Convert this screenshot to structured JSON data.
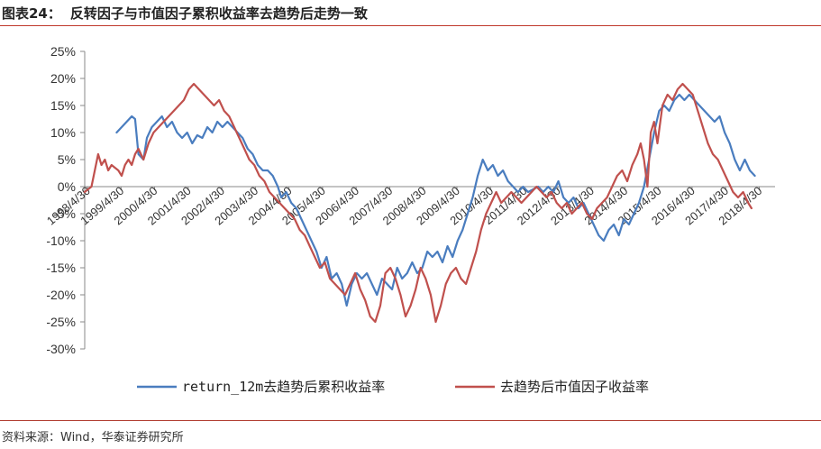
{
  "header": {
    "figure_number": "图表24：",
    "title": "反转因子与市值因子累积收益率去趋势后走势一致"
  },
  "source": "资料来源：Wind，华泰证券研究所",
  "colors": {
    "series_a": "#4a7dbf",
    "series_b": "#c0504d",
    "axis": "#888888",
    "rule": "#c0392b"
  },
  "chart_data": {
    "type": "line",
    "ylim": [
      -0.3,
      0.25
    ],
    "y_tick_labels": [
      "25%",
      "20%",
      "15%",
      "10%",
      "5%",
      "0%",
      "-5%",
      "-10%",
      "-15%",
      "-20%",
      "-25%",
      "-30%"
    ],
    "y_tick_values": [
      0.25,
      0.2,
      0.15,
      0.1,
      0.05,
      0.0,
      -0.05,
      -0.1,
      -0.15,
      -0.2,
      -0.25,
      -0.3
    ],
    "xlim": [
      1998.25,
      2018.8
    ],
    "x_tick_labels": [
      "1998/4/30",
      "1999/4/30",
      "2000/4/30",
      "2001/4/30",
      "2002/4/30",
      "2003/4/30",
      "2004/4/30",
      "2005/4/30",
      "2006/4/30",
      "2007/4/30",
      "2008/4/30",
      "2009/4/30",
      "2010/4/30",
      "2011/4/30",
      "2012/4/30",
      "2013/4/30",
      "2014/4/30",
      "2015/4/30",
      "2016/4/30",
      "2017/4/30",
      "2018/4/30"
    ],
    "x_tick_values": [
      1998.33,
      1999.33,
      2000.33,
      2001.33,
      2002.33,
      2003.33,
      2004.33,
      2005.33,
      2006.33,
      2007.33,
      2008.33,
      2009.33,
      2010.33,
      2011.33,
      2012.33,
      2013.33,
      2014.33,
      2015.33,
      2016.33,
      2017.33,
      2018.33
    ],
    "legend_position": "bottom",
    "series": [
      {
        "name": "return_12m去趋势后累积收益率",
        "color": "#4a7dbf",
        "points": [
          [
            1999.2,
            0.1
          ],
          [
            1999.35,
            0.11
          ],
          [
            1999.5,
            0.12
          ],
          [
            1999.65,
            0.13
          ],
          [
            1999.75,
            0.125
          ],
          [
            1999.85,
            0.06
          ],
          [
            2000.0,
            0.05
          ],
          [
            2000.1,
            0.09
          ],
          [
            2000.25,
            0.11
          ],
          [
            2000.4,
            0.12
          ],
          [
            2000.55,
            0.13
          ],
          [
            2000.7,
            0.11
          ],
          [
            2000.85,
            0.12
          ],
          [
            2001.0,
            0.1
          ],
          [
            2001.15,
            0.09
          ],
          [
            2001.3,
            0.1
          ],
          [
            2001.45,
            0.08
          ],
          [
            2001.6,
            0.095
          ],
          [
            2001.75,
            0.09
          ],
          [
            2001.9,
            0.11
          ],
          [
            2002.05,
            0.1
          ],
          [
            2002.2,
            0.12
          ],
          [
            2002.35,
            0.11
          ],
          [
            2002.5,
            0.12
          ],
          [
            2002.65,
            0.11
          ],
          [
            2002.8,
            0.1
          ],
          [
            2002.95,
            0.09
          ],
          [
            2003.1,
            0.07
          ],
          [
            2003.25,
            0.06
          ],
          [
            2003.4,
            0.04
          ],
          [
            2003.55,
            0.03
          ],
          [
            2003.7,
            0.03
          ],
          [
            2003.85,
            0.02
          ],
          [
            2004.0,
            0.0
          ],
          [
            2004.1,
            -0.02
          ],
          [
            2004.25,
            -0.01
          ],
          [
            2004.4,
            -0.03
          ],
          [
            2004.55,
            -0.04
          ],
          [
            2004.7,
            -0.06
          ],
          [
            2004.85,
            -0.08
          ],
          [
            2005.0,
            -0.1
          ],
          [
            2005.15,
            -0.12
          ],
          [
            2005.3,
            -0.15
          ],
          [
            2005.45,
            -0.13
          ],
          [
            2005.6,
            -0.17
          ],
          [
            2005.75,
            -0.16
          ],
          [
            2005.9,
            -0.18
          ],
          [
            2006.05,
            -0.22
          ],
          [
            2006.2,
            -0.18
          ],
          [
            2006.35,
            -0.16
          ],
          [
            2006.5,
            -0.17
          ],
          [
            2006.65,
            -0.16
          ],
          [
            2006.8,
            -0.18
          ],
          [
            2006.95,
            -0.2
          ],
          [
            2007.1,
            -0.17
          ],
          [
            2007.25,
            -0.18
          ],
          [
            2007.4,
            -0.19
          ],
          [
            2007.55,
            -0.15
          ],
          [
            2007.7,
            -0.17
          ],
          [
            2007.85,
            -0.16
          ],
          [
            2008.0,
            -0.14
          ],
          [
            2008.15,
            -0.16
          ],
          [
            2008.3,
            -0.15
          ],
          [
            2008.45,
            -0.12
          ],
          [
            2008.6,
            -0.13
          ],
          [
            2008.75,
            -0.12
          ],
          [
            2008.9,
            -0.14
          ],
          [
            2009.05,
            -0.11
          ],
          [
            2009.2,
            -0.13
          ],
          [
            2009.35,
            -0.1
          ],
          [
            2009.5,
            -0.08
          ],
          [
            2009.65,
            -0.05
          ],
          [
            2009.8,
            -0.02
          ],
          [
            2009.95,
            0.02
          ],
          [
            2010.1,
            0.05
          ],
          [
            2010.25,
            0.03
          ],
          [
            2010.4,
            0.04
          ],
          [
            2010.55,
            0.02
          ],
          [
            2010.7,
            0.03
          ],
          [
            2010.85,
            0.01
          ],
          [
            2011.0,
            0.0
          ],
          [
            2011.15,
            -0.01
          ],
          [
            2011.3,
            0.0
          ],
          [
            2011.45,
            -0.01
          ],
          [
            2011.6,
            -0.005
          ],
          [
            2011.75,
            0.0
          ],
          [
            2011.9,
            -0.01
          ],
          [
            2012.05,
            0.0
          ],
          [
            2012.2,
            -0.01
          ],
          [
            2012.35,
            0.01
          ],
          [
            2012.5,
            -0.02
          ],
          [
            2012.65,
            -0.03
          ],
          [
            2012.8,
            -0.02
          ],
          [
            2012.95,
            -0.04
          ],
          [
            2013.1,
            -0.03
          ],
          [
            2013.25,
            -0.05
          ],
          [
            2013.4,
            -0.07
          ],
          [
            2013.55,
            -0.09
          ],
          [
            2013.7,
            -0.1
          ],
          [
            2013.85,
            -0.08
          ],
          [
            2014.0,
            -0.07
          ],
          [
            2014.15,
            -0.09
          ],
          [
            2014.3,
            -0.06
          ],
          [
            2014.45,
            -0.07
          ],
          [
            2014.6,
            -0.05
          ],
          [
            2014.75,
            -0.03
          ],
          [
            2014.9,
            0.0
          ],
          [
            2015.05,
            0.05
          ],
          [
            2015.2,
            0.1
          ],
          [
            2015.35,
            0.14
          ],
          [
            2015.5,
            0.15
          ],
          [
            2015.65,
            0.14
          ],
          [
            2015.8,
            0.16
          ],
          [
            2015.95,
            0.17
          ],
          [
            2016.1,
            0.16
          ],
          [
            2016.25,
            0.17
          ],
          [
            2016.4,
            0.16
          ],
          [
            2016.55,
            0.15
          ],
          [
            2016.7,
            0.14
          ],
          [
            2016.85,
            0.13
          ],
          [
            2017.0,
            0.12
          ],
          [
            2017.15,
            0.13
          ],
          [
            2017.3,
            0.1
          ],
          [
            2017.45,
            0.08
          ],
          [
            2017.6,
            0.05
          ],
          [
            2017.75,
            0.03
          ],
          [
            2017.9,
            0.05
          ],
          [
            2018.05,
            0.03
          ],
          [
            2018.2,
            0.02
          ]
        ]
      },
      {
        "name": "去趋势后市值因子收益率",
        "color": "#c0504d",
        "points": [
          [
            1998.25,
            -0.01
          ],
          [
            1998.35,
            -0.005
          ],
          [
            1998.45,
            0.0
          ],
          [
            1998.55,
            0.03
          ],
          [
            1998.65,
            0.06
          ],
          [
            1998.75,
            0.04
          ],
          [
            1998.85,
            0.05
          ],
          [
            1998.95,
            0.03
          ],
          [
            1999.05,
            0.04
          ],
          [
            1999.15,
            0.035
          ],
          [
            1999.25,
            0.03
          ],
          [
            1999.35,
            0.02
          ],
          [
            1999.45,
            0.04
          ],
          [
            1999.55,
            0.05
          ],
          [
            1999.65,
            0.04
          ],
          [
            1999.75,
            0.06
          ],
          [
            1999.85,
            0.07
          ],
          [
            2000.0,
            0.05
          ],
          [
            2000.15,
            0.08
          ],
          [
            2000.3,
            0.1
          ],
          [
            2000.45,
            0.11
          ],
          [
            2000.6,
            0.12
          ],
          [
            2000.75,
            0.13
          ],
          [
            2000.9,
            0.14
          ],
          [
            2001.05,
            0.15
          ],
          [
            2001.2,
            0.16
          ],
          [
            2001.35,
            0.18
          ],
          [
            2001.5,
            0.19
          ],
          [
            2001.65,
            0.18
          ],
          [
            2001.8,
            0.17
          ],
          [
            2001.95,
            0.16
          ],
          [
            2002.1,
            0.15
          ],
          [
            2002.25,
            0.16
          ],
          [
            2002.4,
            0.14
          ],
          [
            2002.55,
            0.13
          ],
          [
            2002.7,
            0.11
          ],
          [
            2002.85,
            0.09
          ],
          [
            2003.0,
            0.07
          ],
          [
            2003.15,
            0.05
          ],
          [
            2003.3,
            0.04
          ],
          [
            2003.45,
            0.02
          ],
          [
            2003.6,
            0.01
          ],
          [
            2003.75,
            -0.01
          ],
          [
            2003.9,
            -0.02
          ],
          [
            2004.05,
            -0.03
          ],
          [
            2004.2,
            -0.04
          ],
          [
            2004.35,
            -0.05
          ],
          [
            2004.5,
            -0.06
          ],
          [
            2004.65,
            -0.08
          ],
          [
            2004.8,
            -0.09
          ],
          [
            2004.95,
            -0.11
          ],
          [
            2005.1,
            -0.13
          ],
          [
            2005.25,
            -0.15
          ],
          [
            2005.4,
            -0.14
          ],
          [
            2005.55,
            -0.17
          ],
          [
            2005.7,
            -0.18
          ],
          [
            2005.85,
            -0.19
          ],
          [
            2006.0,
            -0.2
          ],
          [
            2006.15,
            -0.18
          ],
          [
            2006.3,
            -0.16
          ],
          [
            2006.45,
            -0.19
          ],
          [
            2006.6,
            -0.21
          ],
          [
            2006.75,
            -0.24
          ],
          [
            2006.9,
            -0.25
          ],
          [
            2007.05,
            -0.22
          ],
          [
            2007.2,
            -0.16
          ],
          [
            2007.35,
            -0.15
          ],
          [
            2007.5,
            -0.17
          ],
          [
            2007.65,
            -0.2
          ],
          [
            2007.8,
            -0.24
          ],
          [
            2007.95,
            -0.22
          ],
          [
            2008.1,
            -0.19
          ],
          [
            2008.25,
            -0.15
          ],
          [
            2008.4,
            -0.17
          ],
          [
            2008.55,
            -0.2
          ],
          [
            2008.7,
            -0.25
          ],
          [
            2008.85,
            -0.22
          ],
          [
            2009.0,
            -0.18
          ],
          [
            2009.15,
            -0.16
          ],
          [
            2009.3,
            -0.15
          ],
          [
            2009.45,
            -0.17
          ],
          [
            2009.6,
            -0.18
          ],
          [
            2009.75,
            -0.15
          ],
          [
            2009.9,
            -0.12
          ],
          [
            2010.05,
            -0.08
          ],
          [
            2010.2,
            -0.05
          ],
          [
            2010.35,
            -0.03
          ],
          [
            2010.5,
            -0.01
          ],
          [
            2010.65,
            -0.03
          ],
          [
            2010.8,
            -0.02
          ],
          [
            2010.95,
            -0.01
          ],
          [
            2011.1,
            -0.02
          ],
          [
            2011.25,
            -0.03
          ],
          [
            2011.4,
            -0.02
          ],
          [
            2011.55,
            -0.01
          ],
          [
            2011.7,
            0.0
          ],
          [
            2011.85,
            -0.01
          ],
          [
            2012.0,
            -0.02
          ],
          [
            2012.15,
            -0.01
          ],
          [
            2012.3,
            -0.03
          ],
          [
            2012.45,
            -0.04
          ],
          [
            2012.6,
            -0.03
          ],
          [
            2012.75,
            -0.05
          ],
          [
            2012.9,
            -0.04
          ],
          [
            2013.05,
            -0.03
          ],
          [
            2013.2,
            -0.05
          ],
          [
            2013.35,
            -0.06
          ],
          [
            2013.5,
            -0.04
          ],
          [
            2013.65,
            -0.03
          ],
          [
            2013.8,
            -0.02
          ],
          [
            2013.95,
            0.0
          ],
          [
            2014.1,
            0.02
          ],
          [
            2014.25,
            0.03
          ],
          [
            2014.4,
            0.01
          ],
          [
            2014.55,
            0.04
          ],
          [
            2014.7,
            0.06
          ],
          [
            2014.8,
            0.08
          ],
          [
            2014.9,
            0.05
          ],
          [
            2015.0,
            0.0
          ],
          [
            2015.1,
            0.1
          ],
          [
            2015.2,
            0.12
          ],
          [
            2015.3,
            0.08
          ],
          [
            2015.45,
            0.15
          ],
          [
            2015.6,
            0.17
          ],
          [
            2015.75,
            0.16
          ],
          [
            2015.9,
            0.18
          ],
          [
            2016.05,
            0.19
          ],
          [
            2016.2,
            0.18
          ],
          [
            2016.35,
            0.17
          ],
          [
            2016.5,
            0.14
          ],
          [
            2016.65,
            0.11
          ],
          [
            2016.8,
            0.08
          ],
          [
            2016.95,
            0.06
          ],
          [
            2017.1,
            0.05
          ],
          [
            2017.25,
            0.03
          ],
          [
            2017.4,
            0.01
          ],
          [
            2017.55,
            -0.01
          ],
          [
            2017.7,
            -0.02
          ],
          [
            2017.85,
            -0.01
          ],
          [
            2018.0,
            -0.03
          ],
          [
            2018.1,
            -0.04
          ]
        ]
      }
    ]
  }
}
